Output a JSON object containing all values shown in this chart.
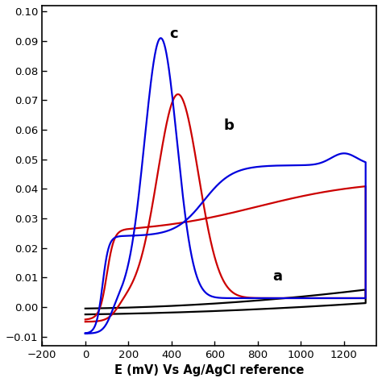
{
  "xlabel": "E (mV) Vs Ag/AgCl reference",
  "xlim": [
    -200,
    1350
  ],
  "ylim": [
    -0.013,
    0.102
  ],
  "yticks": [
    -0.01,
    0.0,
    0.01,
    0.02,
    0.03,
    0.04,
    0.05,
    0.06,
    0.07,
    0.08,
    0.09,
    0.1
  ],
  "xticks": [
    -200,
    0,
    200,
    400,
    600,
    800,
    1000,
    1200
  ],
  "label_a": "a",
  "label_b": "b",
  "label_c": "c",
  "color_a": "#000000",
  "color_b": "#cc0000",
  "color_c": "#0000dd",
  "linewidth": 1.6
}
